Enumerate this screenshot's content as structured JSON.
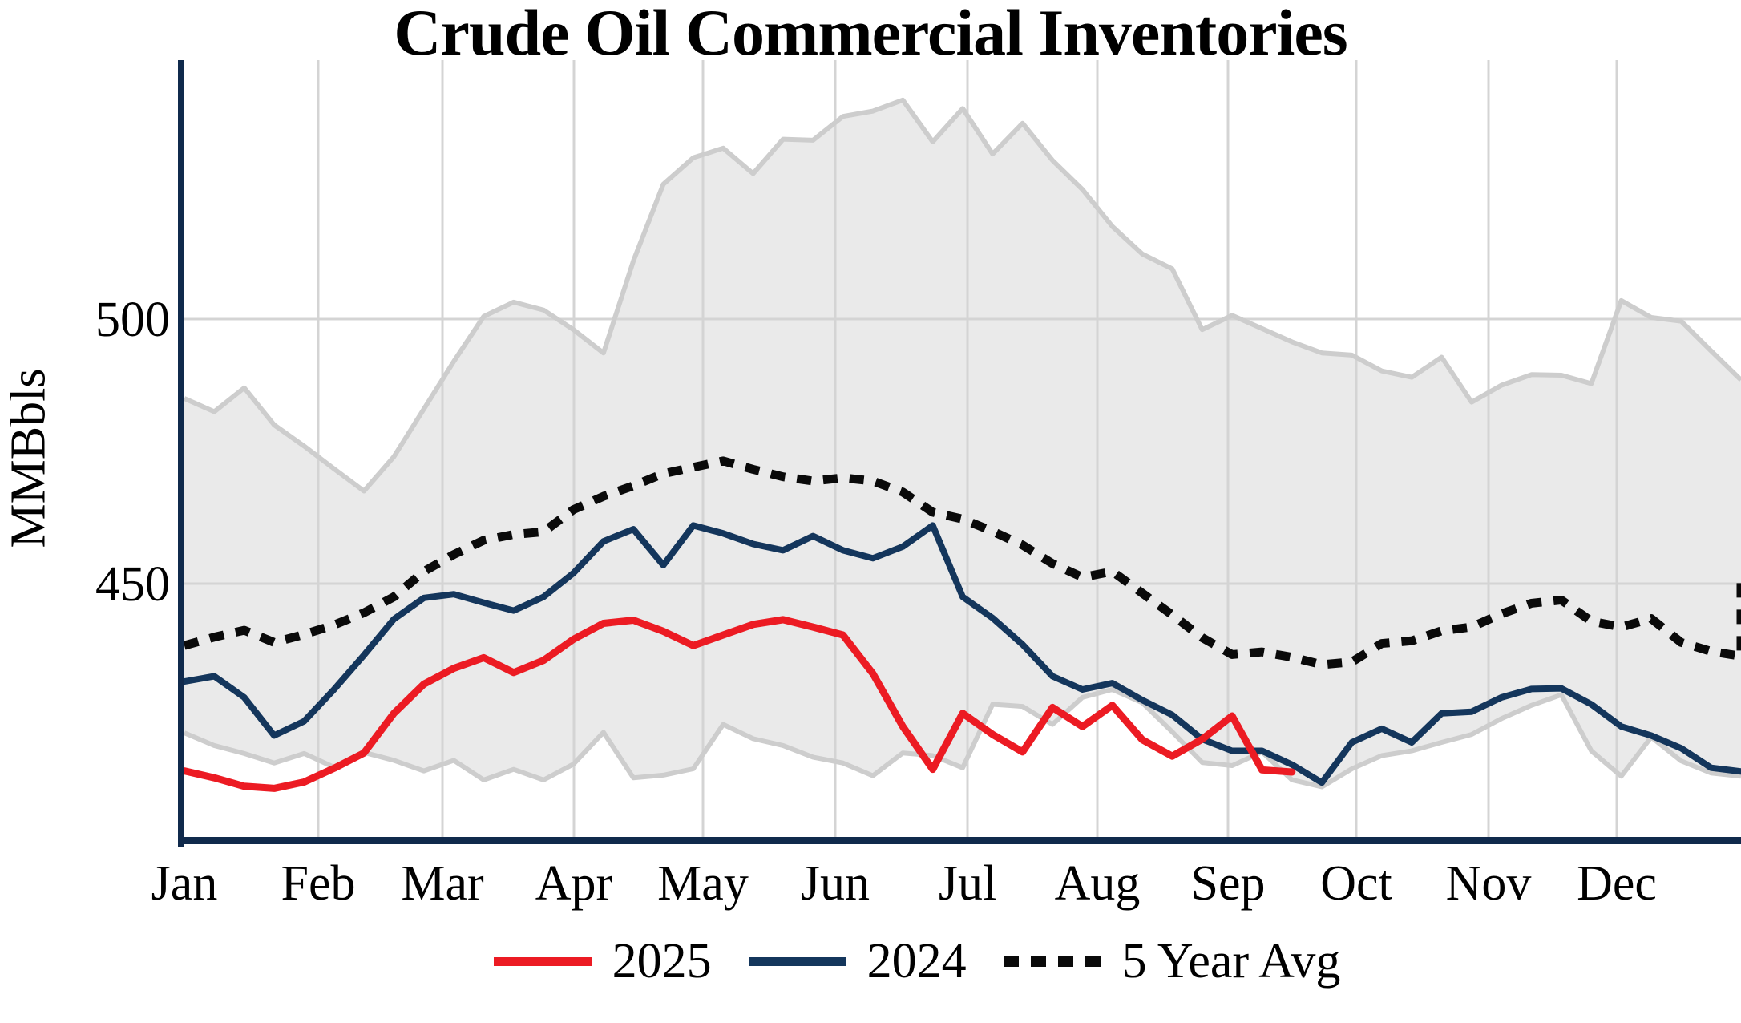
{
  "title": "Crude Oil Commercial Inventories",
  "y_axis": {
    "label": "MMBbls",
    "ticks": [
      450,
      500
    ]
  },
  "x_axis": {
    "months": [
      "Jan",
      "Feb",
      "Mar",
      "Apr",
      "May",
      "Jun",
      "Jul",
      "Aug",
      "Sep",
      "Oct",
      "Nov",
      "Dec"
    ]
  },
  "legend": [
    {
      "label": "2025",
      "style": "solid",
      "color": "#EC1B23"
    },
    {
      "label": "2024",
      "style": "solid",
      "color": "#14365C"
    },
    {
      "label": "5 Year Avg",
      "style": "dotted",
      "color": "#0A0A0A"
    }
  ],
  "colors": {
    "band_fill": "#EAEAEA",
    "band_border": "#CDCDCD",
    "grid": "#D4D4D4",
    "axis": "#102A4C",
    "series_2025": "#EC1B23",
    "series_2024": "#14365C",
    "series_avg": "#0A0A0A"
  },
  "chart_data": {
    "type": "line",
    "title": "Crude Oil Commercial Inventories",
    "ylabel": "MMBbls",
    "xlabel": "",
    "x_unit": "week-of-year (Jan through Dec, 53 weekly points)",
    "ylim": [
      402,
      547
    ],
    "yticks": [
      450,
      500
    ],
    "grid": "major x (monthly) and y (50s)",
    "legend_position": "bottom",
    "categories_months": [
      "Jan",
      "Feb",
      "Mar",
      "Apr",
      "May",
      "Jun",
      "Jul",
      "Aug",
      "Sep",
      "Oct",
      "Nov",
      "Dec"
    ],
    "series": [
      {
        "name": "5 Year Range High",
        "role": "band-upper",
        "values": [
          485,
          482.5,
          487,
          480,
          476,
          471.7,
          467.5,
          474,
          483,
          492,
          500.5,
          503.2,
          501.7,
          498,
          493.6,
          511,
          525.5,
          530.5,
          532.3,
          527.5,
          534,
          533.8,
          538.3,
          539.3,
          541.4,
          533.5,
          539.8,
          531.2,
          537,
          530,
          524.5,
          517.5,
          512.3,
          509.5,
          498,
          500.7,
          498.2,
          495.7,
          493.6,
          493.2,
          490.2,
          489,
          492.8,
          484.3,
          487.5,
          489.5,
          489.4,
          487.8,
          503.5,
          500.3,
          499.6,
          494,
          488.5
        ]
      },
      {
        "name": "5 Year Range Low",
        "role": "band-lower",
        "values": [
          421.8,
          419.4,
          417.9,
          416.1,
          417.9,
          415.3,
          418.1,
          416.6,
          414.6,
          416.6,
          412.9,
          414.9,
          412.9,
          415.9,
          421.9,
          413.3,
          413.8,
          415,
          423.4,
          420.7,
          419.4,
          417.2,
          416.1,
          413.7,
          418,
          417.5,
          415.2,
          427.2,
          426.8,
          423.4,
          428.5,
          430,
          427.5,
          422,
          416.2,
          415.6,
          418.2,
          412.9,
          411.6,
          415,
          417.5,
          418.4,
          420,
          421.5,
          424.5,
          427,
          429,
          418.4,
          413.6,
          421,
          416.5,
          414.2,
          413.6
        ]
      },
      {
        "name": "5 Year Avg",
        "role": "line-dotted",
        "values": [
          438.3,
          439.9,
          441.2,
          438.9,
          440.4,
          442.2,
          444.5,
          447.5,
          452.3,
          455.5,
          458.2,
          459.3,
          459.8,
          464,
          466.5,
          468.5,
          470.8,
          472,
          473.2,
          471.6,
          470.2,
          469.4,
          470,
          469.4,
          467.3,
          463.5,
          462.2,
          459.9,
          457.3,
          453.8,
          451.2,
          452.3,
          448.2,
          444.1,
          439.8,
          436.6,
          437.1,
          436.1,
          434.7,
          435.2,
          438.7,
          439.2,
          441.1,
          441.8,
          444.3,
          446.3,
          446.9,
          442.9,
          441.8,
          443.4,
          438.9,
          437.2,
          436.3
        ],
        "year_end_jump_value": 450.5
      },
      {
        "name": "2024",
        "role": "line-solid",
        "values": [
          431.5,
          432.5,
          428.5,
          421.3,
          424,
          430,
          436.5,
          443.3,
          447.3,
          448,
          446.4,
          444.9,
          447.5,
          452,
          458,
          460.3,
          453.5,
          461,
          459.5,
          457.5,
          456.3,
          459,
          456.3,
          454.8,
          457,
          461,
          447.5,
          443.5,
          438.5,
          432.5,
          430,
          431.2,
          428,
          425.2,
          420.6,
          418.4,
          418.4,
          415.8,
          412.4,
          420,
          422.6,
          420,
          425.5,
          425.8,
          428.5,
          430.1,
          430.2,
          427.2,
          423,
          421.3,
          418.9,
          415.2,
          414.5
        ]
      },
      {
        "name": "2025",
        "role": "line-solid",
        "ends_mid_september": true,
        "values": [
          414.6,
          413.3,
          411.7,
          411.3,
          412.5,
          415.1,
          418,
          425.5,
          431,
          434,
          436,
          433.2,
          435.5,
          439.5,
          442.5,
          443.1,
          441,
          438.3,
          440.3,
          442.3,
          443.2,
          441.8,
          440.3,
          433,
          423,
          414.9,
          425.5,
          421.5,
          418.2,
          426.6,
          423,
          427,
          420.5,
          417.4,
          420.6,
          425,
          414.8,
          414.4
        ]
      }
    ]
  }
}
